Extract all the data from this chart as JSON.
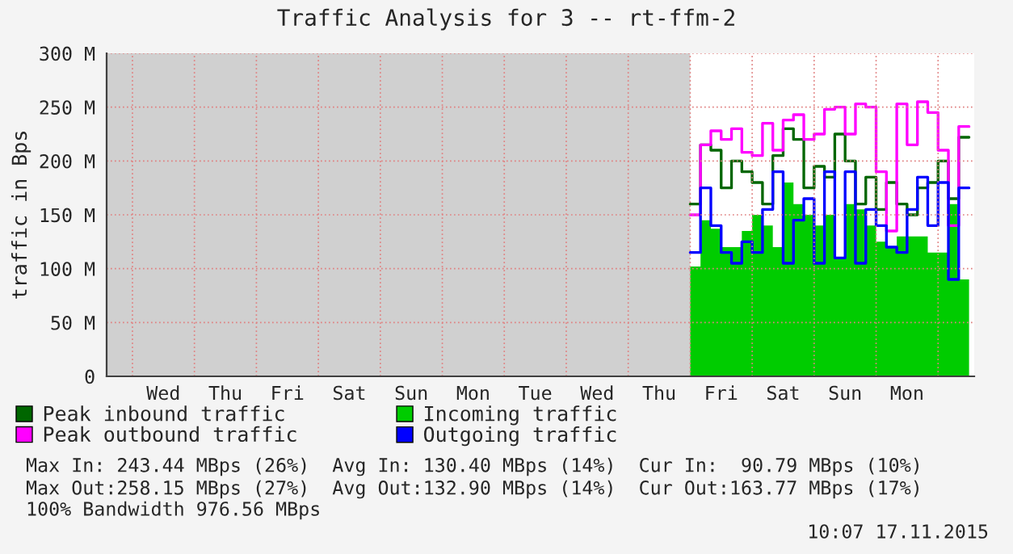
{
  "chart_data": {
    "type": "step",
    "title": "Traffic Analysis for 3 -- rt-ffm-2",
    "ylabel": "traffic in Bps",
    "categories": [
      null,
      null,
      null,
      null,
      null,
      "Wed",
      null,
      null,
      null,
      null,
      null,
      "Thu",
      null,
      null,
      null,
      null,
      null,
      "Fri",
      null,
      null,
      null,
      null,
      null,
      "Sat",
      null,
      null,
      null,
      null,
      null,
      "Sun",
      null,
      null,
      null,
      null,
      null,
      "Mon",
      null,
      null,
      null,
      null,
      null,
      "Tue",
      null,
      null,
      null,
      null,
      null,
      "Wed",
      null,
      null,
      null,
      null,
      null,
      "Thu",
      null,
      null,
      null,
      null,
      null,
      "Fri",
      null,
      null,
      null,
      null,
      null,
      "Sat",
      null,
      null,
      null,
      null,
      null,
      "Sun",
      null,
      null,
      null,
      null,
      null,
      "Mon",
      null,
      null,
      null,
      null,
      null,
      null
    ],
    "series": [
      {
        "name": "Peak inbound traffic",
        "color": "#006600",
        "values": [
          null,
          null,
          null,
          null,
          null,
          null,
          null,
          null,
          null,
          null,
          null,
          null,
          null,
          null,
          null,
          null,
          null,
          null,
          null,
          null,
          null,
          null,
          null,
          null,
          null,
          null,
          null,
          null,
          null,
          null,
          null,
          null,
          null,
          null,
          null,
          null,
          null,
          null,
          null,
          null,
          null,
          null,
          null,
          null,
          null,
          null,
          null,
          null,
          null,
          null,
          null,
          null,
          null,
          null,
          null,
          null,
          160,
          215,
          210,
          175,
          200,
          190,
          180,
          160,
          205,
          230,
          220,
          175,
          195,
          185,
          225,
          200,
          160,
          185,
          155,
          180,
          160,
          150,
          175,
          180,
          200,
          165,
          222,
          222
        ]
      },
      {
        "name": "Incoming traffic",
        "type": "area",
        "color": "#00cc00",
        "values": [
          null,
          null,
          null,
          null,
          null,
          null,
          null,
          null,
          null,
          null,
          null,
          null,
          null,
          null,
          null,
          null,
          null,
          null,
          null,
          null,
          null,
          null,
          null,
          null,
          null,
          null,
          null,
          null,
          null,
          null,
          null,
          null,
          null,
          null,
          null,
          null,
          null,
          null,
          null,
          null,
          null,
          null,
          null,
          null,
          null,
          null,
          null,
          null,
          null,
          null,
          null,
          null,
          null,
          null,
          null,
          null,
          102,
          145,
          137,
          120,
          120,
          135,
          150,
          140,
          120,
          180,
          160,
          150,
          140,
          150,
          110,
          160,
          155,
          140,
          125,
          120,
          130,
          130,
          130,
          115,
          115,
          160,
          90,
          90
        ]
      },
      {
        "name": "Peak outbound traffic",
        "color": "#ff00ff",
        "values": [
          null,
          null,
          null,
          null,
          null,
          null,
          null,
          null,
          null,
          null,
          null,
          null,
          null,
          null,
          null,
          null,
          null,
          null,
          null,
          null,
          null,
          null,
          null,
          null,
          null,
          null,
          null,
          null,
          null,
          null,
          null,
          null,
          null,
          null,
          null,
          null,
          null,
          null,
          null,
          null,
          null,
          null,
          null,
          null,
          null,
          null,
          null,
          null,
          null,
          null,
          null,
          null,
          null,
          null,
          null,
          null,
          150,
          215,
          228,
          220,
          230,
          208,
          205,
          235,
          210,
          238,
          243,
          220,
          225,
          248,
          250,
          225,
          253,
          250,
          190,
          135,
          253,
          215,
          255,
          245,
          210,
          140,
          232,
          232
        ]
      },
      {
        "name": "Outgoing traffic",
        "color": "#0000ff",
        "values": [
          null,
          null,
          null,
          null,
          null,
          null,
          null,
          null,
          null,
          null,
          null,
          null,
          null,
          null,
          null,
          null,
          null,
          null,
          null,
          null,
          null,
          null,
          null,
          null,
          null,
          null,
          null,
          null,
          null,
          null,
          null,
          null,
          null,
          null,
          null,
          null,
          null,
          null,
          null,
          null,
          null,
          null,
          null,
          null,
          null,
          null,
          null,
          null,
          null,
          null,
          null,
          null,
          null,
          null,
          null,
          null,
          115,
          175,
          140,
          115,
          105,
          125,
          115,
          155,
          190,
          105,
          145,
          165,
          105,
          190,
          110,
          190,
          105,
          155,
          140,
          120,
          115,
          155,
          185,
          140,
          180,
          90,
          175,
          175
        ]
      }
    ],
    "ylim": [
      0,
      300
    ],
    "yticks": [
      0,
      {
        "value": 50,
        "label": "50 M"
      },
      {
        "value": 100,
        "label": "100 M"
      },
      {
        "value": 150,
        "label": "150 M"
      },
      {
        "value": 200,
        "label": "200 M"
      },
      {
        "value": 250,
        "label": "250 M"
      },
      {
        "value": 300,
        "label": "300 M"
      }
    ],
    "grid": true,
    "legend": "bottom",
    "annotations": [
      "Max In: 243.44 MBps (26%)  Avg In: 130.40 MBps (14%)  Cur In:  90.79 MBps (10%)",
      "Max Out:258.15 MBps (27%)  Avg Out:132.90 MBps (14%)  Cur Out:163.77 MBps (17%)",
      "100% Bandwidth 976.56 MBps",
      "10:07 17.11.2015"
    ]
  }
}
